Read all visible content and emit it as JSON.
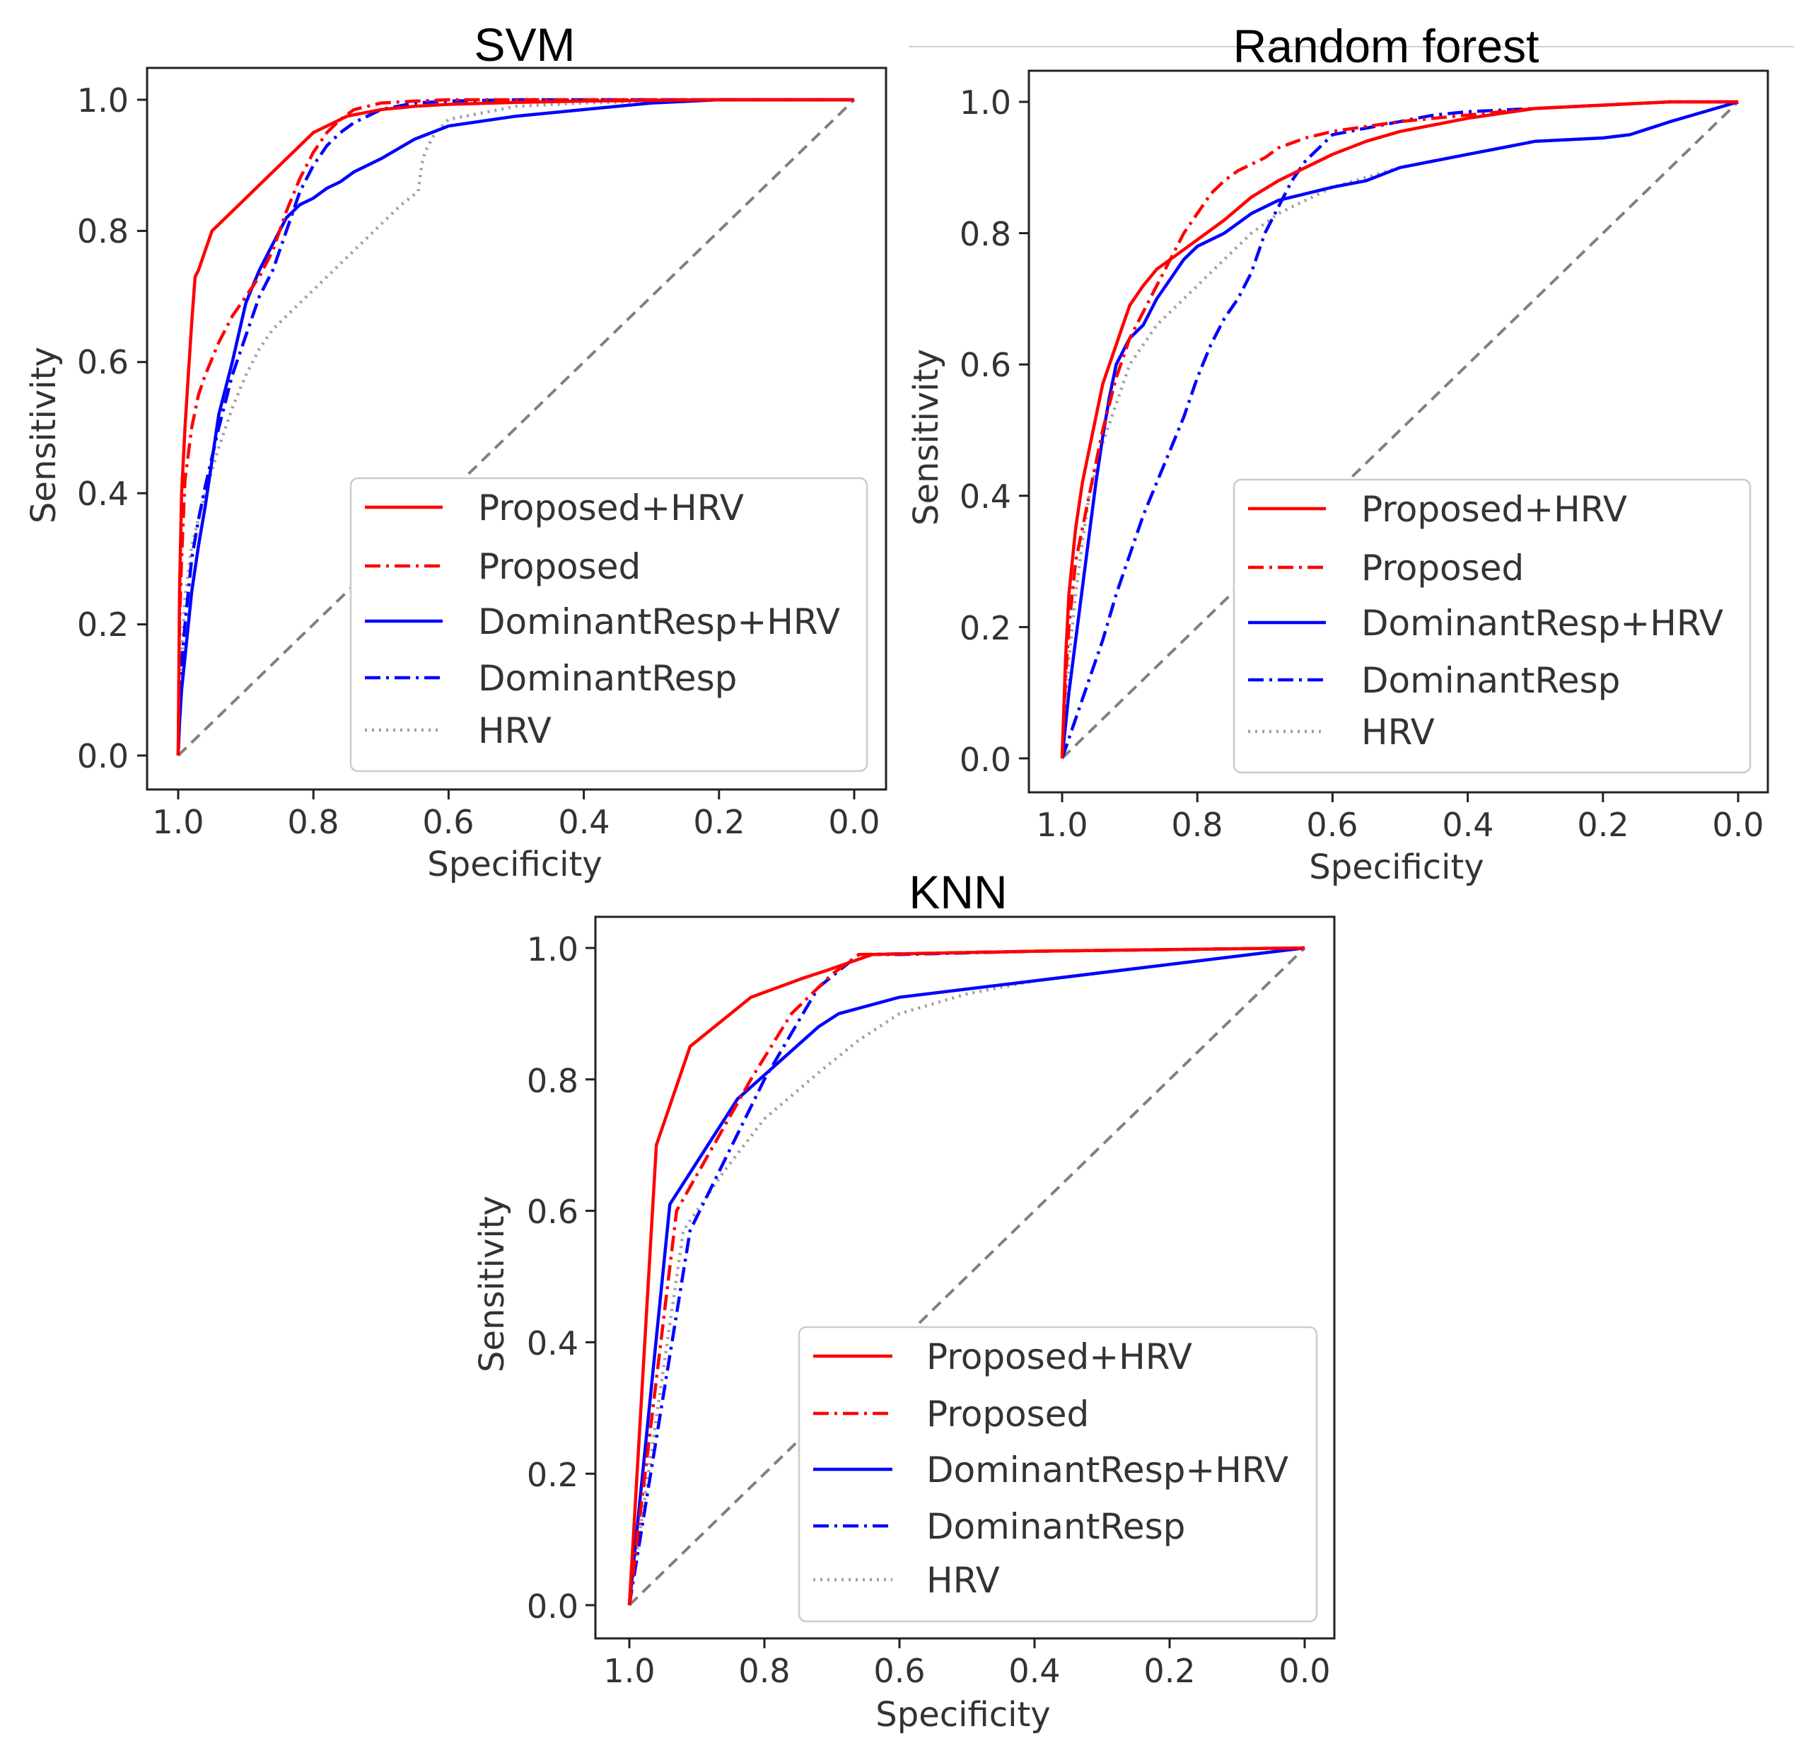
{
  "chart_data": [
    {
      "type": "line",
      "title": "SVM",
      "xlabel": "Specificity",
      "ylabel": "Sensitivity",
      "xlim": [
        1.0,
        0.0
      ],
      "ylim": [
        0.0,
        1.0
      ],
      "xticks": [
        "1.0",
        "0.8",
        "0.6",
        "0.4",
        "0.2",
        "0.0"
      ],
      "yticks": [
        "0.0",
        "0.2",
        "0.4",
        "0.6",
        "0.8",
        "1.0"
      ],
      "legend_position": "lower-right",
      "chance_line": {
        "name": "chance",
        "color": "#808080",
        "style": "dashed"
      },
      "series": [
        {
          "name": "Proposed+HRV",
          "color": "#ff0000",
          "style": "solid",
          "x": [
            1.0,
            0.998,
            0.995,
            0.99,
            0.985,
            0.98,
            0.975,
            0.97,
            0.96,
            0.95,
            0.94,
            0.92,
            0.9,
            0.88,
            0.86,
            0.84,
            0.82,
            0.8,
            0.78,
            0.75,
            0.7,
            0.65,
            0.6,
            0.5,
            0.4,
            0.2,
            0.0
          ],
          "y": [
            0.0,
            0.25,
            0.4,
            0.5,
            0.58,
            0.66,
            0.73,
            0.74,
            0.77,
            0.8,
            0.81,
            0.83,
            0.85,
            0.87,
            0.89,
            0.91,
            0.93,
            0.95,
            0.96,
            0.975,
            0.985,
            0.99,
            0.993,
            0.996,
            0.998,
            1.0,
            1.0
          ]
        },
        {
          "name": "Proposed",
          "color": "#ff0000",
          "style": "dashdot",
          "x": [
            1.0,
            0.998,
            0.995,
            0.99,
            0.98,
            0.97,
            0.96,
            0.94,
            0.92,
            0.9,
            0.88,
            0.86,
            0.84,
            0.82,
            0.8,
            0.78,
            0.76,
            0.74,
            0.72,
            0.7,
            0.65,
            0.6,
            0.5,
            0.4,
            0.2,
            0.0
          ],
          "y": [
            0.0,
            0.2,
            0.3,
            0.42,
            0.5,
            0.55,
            0.58,
            0.63,
            0.67,
            0.7,
            0.73,
            0.77,
            0.83,
            0.88,
            0.92,
            0.95,
            0.97,
            0.985,
            0.99,
            0.995,
            0.998,
            1.0,
            1.0,
            1.0,
            1.0,
            1.0
          ]
        },
        {
          "name": "DominantResp+HRV",
          "color": "#0000ff",
          "style": "solid",
          "x": [
            1.0,
            0.998,
            0.995,
            0.99,
            0.98,
            0.97,
            0.96,
            0.95,
            0.94,
            0.92,
            0.9,
            0.88,
            0.86,
            0.84,
            0.82,
            0.8,
            0.78,
            0.76,
            0.74,
            0.72,
            0.7,
            0.65,
            0.6,
            0.5,
            0.4,
            0.3,
            0.2,
            0.0
          ],
          "y": [
            0.0,
            0.05,
            0.1,
            0.15,
            0.25,
            0.32,
            0.38,
            0.45,
            0.52,
            0.6,
            0.69,
            0.74,
            0.78,
            0.82,
            0.84,
            0.85,
            0.865,
            0.875,
            0.89,
            0.9,
            0.91,
            0.94,
            0.96,
            0.975,
            0.985,
            0.995,
            1.0,
            1.0
          ]
        },
        {
          "name": "DominantResp",
          "color": "#0000ff",
          "style": "dashdot",
          "x": [
            1.0,
            0.998,
            0.995,
            0.99,
            0.98,
            0.97,
            0.96,
            0.94,
            0.92,
            0.9,
            0.88,
            0.86,
            0.84,
            0.82,
            0.8,
            0.78,
            0.76,
            0.74,
            0.72,
            0.7,
            0.65,
            0.6,
            0.5,
            0.4,
            0.2,
            0.0
          ],
          "y": [
            0.0,
            0.08,
            0.14,
            0.2,
            0.3,
            0.36,
            0.41,
            0.5,
            0.58,
            0.64,
            0.7,
            0.74,
            0.8,
            0.86,
            0.9,
            0.93,
            0.95,
            0.965,
            0.975,
            0.985,
            0.995,
            0.998,
            1.0,
            1.0,
            1.0,
            1.0
          ]
        },
        {
          "name": "HRV",
          "color": "#a0a0a0",
          "style": "dotted",
          "x": [
            1.0,
            0.995,
            0.99,
            0.98,
            0.96,
            0.94,
            0.92,
            0.9,
            0.88,
            0.86,
            0.82,
            0.78,
            0.74,
            0.7,
            0.67,
            0.645,
            0.64,
            0.635,
            0.63,
            0.62,
            0.6,
            0.55,
            0.5,
            0.4,
            0.2,
            0.0
          ],
          "y": [
            0.0,
            0.15,
            0.24,
            0.32,
            0.4,
            0.47,
            0.53,
            0.58,
            0.62,
            0.65,
            0.69,
            0.73,
            0.77,
            0.81,
            0.84,
            0.86,
            0.9,
            0.92,
            0.93,
            0.95,
            0.97,
            0.98,
            0.99,
            0.995,
            1.0,
            1.0
          ]
        }
      ]
    },
    {
      "type": "line",
      "title": "Random forest",
      "xlabel": "Specificity",
      "ylabel": "Sensitivity",
      "xlim": [
        1.0,
        0.0
      ],
      "ylim": [
        0.0,
        1.0
      ],
      "xticks": [
        "1.0",
        "0.8",
        "0.6",
        "0.4",
        "0.2",
        "0.0"
      ],
      "yticks": [
        "0.0",
        "0.2",
        "0.4",
        "0.6",
        "0.8",
        "1.0"
      ],
      "legend_position": "lower-right",
      "chance_line": {
        "name": "chance",
        "color": "#808080",
        "style": "dashed"
      },
      "series": [
        {
          "name": "Proposed+HRV",
          "color": "#ff0000",
          "style": "solid",
          "x": [
            1.0,
            0.995,
            0.99,
            0.98,
            0.97,
            0.96,
            0.95,
            0.94,
            0.93,
            0.92,
            0.91,
            0.9,
            0.88,
            0.86,
            0.84,
            0.8,
            0.76,
            0.72,
            0.68,
            0.64,
            0.6,
            0.55,
            0.5,
            0.45,
            0.4,
            0.3,
            0.2,
            0.1,
            0.0
          ],
          "y": [
            0.0,
            0.15,
            0.25,
            0.35,
            0.42,
            0.47,
            0.52,
            0.57,
            0.6,
            0.63,
            0.66,
            0.69,
            0.72,
            0.745,
            0.76,
            0.79,
            0.82,
            0.855,
            0.88,
            0.9,
            0.92,
            0.94,
            0.955,
            0.965,
            0.975,
            0.99,
            0.995,
            1.0,
            1.0
          ]
        },
        {
          "name": "Proposed",
          "color": "#ff0000",
          "style": "dashdot",
          "x": [
            1.0,
            0.995,
            0.99,
            0.98,
            0.96,
            0.94,
            0.92,
            0.9,
            0.88,
            0.86,
            0.84,
            0.82,
            0.8,
            0.78,
            0.76,
            0.74,
            0.72,
            0.7,
            0.68,
            0.64,
            0.6,
            0.5,
            0.4,
            0.3,
            0.2,
            0.1,
            0.0
          ],
          "y": [
            0.0,
            0.12,
            0.2,
            0.3,
            0.4,
            0.5,
            0.58,
            0.64,
            0.68,
            0.72,
            0.76,
            0.8,
            0.83,
            0.86,
            0.88,
            0.895,
            0.905,
            0.915,
            0.93,
            0.945,
            0.955,
            0.97,
            0.98,
            0.99,
            0.995,
            1.0,
            1.0
          ]
        },
        {
          "name": "DominantResp+HRV",
          "color": "#0000ff",
          "style": "solid",
          "x": [
            1.0,
            0.99,
            0.98,
            0.97,
            0.96,
            0.95,
            0.94,
            0.93,
            0.92,
            0.9,
            0.88,
            0.86,
            0.84,
            0.82,
            0.8,
            0.76,
            0.72,
            0.68,
            0.64,
            0.6,
            0.55,
            0.5,
            0.45,
            0.4,
            0.35,
            0.3,
            0.2,
            0.16,
            0.1,
            0.0
          ],
          "y": [
            0.0,
            0.1,
            0.18,
            0.26,
            0.34,
            0.42,
            0.49,
            0.55,
            0.6,
            0.64,
            0.66,
            0.7,
            0.73,
            0.76,
            0.78,
            0.8,
            0.83,
            0.85,
            0.86,
            0.87,
            0.88,
            0.9,
            0.91,
            0.92,
            0.93,
            0.94,
            0.945,
            0.95,
            0.97,
            1.0
          ]
        },
        {
          "name": "DominantResp",
          "color": "#0000ff",
          "style": "dashdot",
          "x": [
            1.0,
            0.98,
            0.96,
            0.94,
            0.92,
            0.9,
            0.88,
            0.86,
            0.84,
            0.82,
            0.8,
            0.78,
            0.76,
            0.74,
            0.72,
            0.7,
            0.68,
            0.66,
            0.64,
            0.62,
            0.6,
            0.55,
            0.5,
            0.45,
            0.4,
            0.3,
            0.2,
            0.1,
            0.0
          ],
          "y": [
            0.0,
            0.06,
            0.12,
            0.18,
            0.25,
            0.31,
            0.37,
            0.42,
            0.47,
            0.52,
            0.58,
            0.63,
            0.67,
            0.7,
            0.74,
            0.8,
            0.84,
            0.88,
            0.91,
            0.93,
            0.95,
            0.96,
            0.97,
            0.98,
            0.985,
            0.99,
            0.995,
            1.0,
            1.0
          ]
        },
        {
          "name": "HRV",
          "color": "#a0a0a0",
          "style": "dotted",
          "x": [
            1.0,
            0.99,
            0.98,
            0.97,
            0.96,
            0.94,
            0.92,
            0.9,
            0.88,
            0.86,
            0.84,
            0.8,
            0.76,
            0.72,
            0.68,
            0.64,
            0.6,
            0.55,
            0.5,
            0.45,
            0.4,
            0.35,
            0.3,
            0.2,
            0.16,
            0.1,
            0.0
          ],
          "y": [
            0.0,
            0.15,
            0.25,
            0.33,
            0.4,
            0.48,
            0.54,
            0.6,
            0.63,
            0.66,
            0.68,
            0.72,
            0.76,
            0.8,
            0.83,
            0.85,
            0.87,
            0.885,
            0.9,
            0.91,
            0.92,
            0.93,
            0.94,
            0.945,
            0.95,
            0.97,
            1.0
          ]
        }
      ]
    },
    {
      "type": "line",
      "title": "KNN",
      "xlabel": "Specificity",
      "ylabel": "Sensitivity",
      "xlim": [
        1.0,
        0.0
      ],
      "ylim": [
        0.0,
        1.0
      ],
      "xticks": [
        "1.0",
        "0.8",
        "0.6",
        "0.4",
        "0.2",
        "0.0"
      ],
      "yticks": [
        "0.0",
        "0.2",
        "0.4",
        "0.6",
        "0.8",
        "1.0"
      ],
      "legend_position": "lower-right",
      "chance_line": {
        "name": "chance",
        "color": "#808080",
        "style": "dashed"
      },
      "series": [
        {
          "name": "Proposed+HRV",
          "color": "#ff0000",
          "style": "solid",
          "x": [
            1.0,
            0.96,
            0.91,
            0.82,
            0.74,
            0.71,
            0.64,
            0.4,
            0.0
          ],
          "y": [
            0.0,
            0.7,
            0.85,
            0.925,
            0.955,
            0.965,
            0.99,
            0.995,
            1.0
          ]
        },
        {
          "name": "Proposed",
          "color": "#ff0000",
          "style": "dashdot",
          "x": [
            1.0,
            0.93,
            0.82,
            0.76,
            0.7,
            0.66,
            0.4,
            0.0
          ],
          "y": [
            0.0,
            0.6,
            0.8,
            0.9,
            0.96,
            0.99,
            0.995,
            1.0
          ]
        },
        {
          "name": "DominantResp+HRV",
          "color": "#0000ff",
          "style": "solid",
          "x": [
            1.0,
            0.94,
            0.84,
            0.72,
            0.69,
            0.6,
            0.0
          ],
          "y": [
            0.0,
            0.61,
            0.77,
            0.88,
            0.9,
            0.925,
            1.0
          ]
        },
        {
          "name": "DominantResp",
          "color": "#0000ff",
          "style": "dashdot",
          "x": [
            1.0,
            0.91,
            0.8,
            0.72,
            0.66,
            0.6,
            0.4,
            0.0
          ],
          "y": [
            0.0,
            0.57,
            0.8,
            0.94,
            0.99,
            0.99,
            0.995,
            1.0
          ]
        },
        {
          "name": "HRV",
          "color": "#a0a0a0",
          "style": "dotted",
          "x": [
            1.0,
            0.92,
            0.86,
            0.8,
            0.72,
            0.66,
            0.6,
            0.5,
            0.4,
            0.2,
            0.0
          ],
          "y": [
            0.0,
            0.57,
            0.66,
            0.74,
            0.81,
            0.86,
            0.9,
            0.93,
            0.95,
            0.975,
            1.0
          ]
        }
      ]
    }
  ]
}
